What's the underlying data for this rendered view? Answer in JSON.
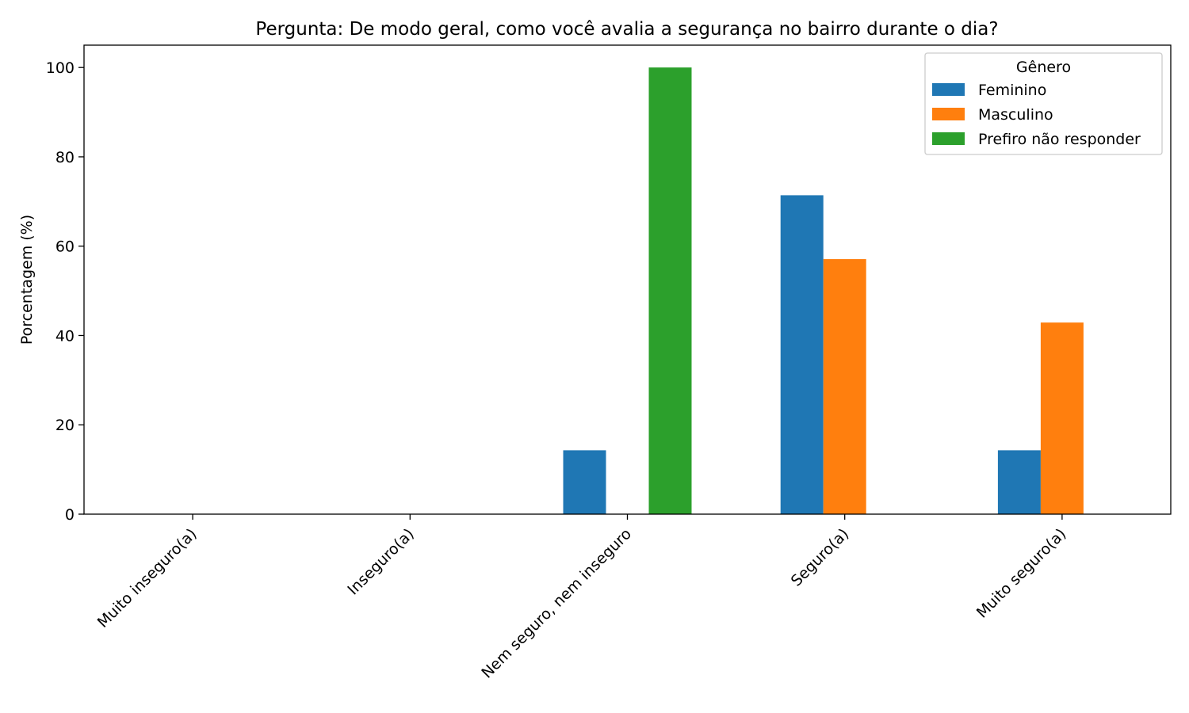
{
  "chart_data": {
    "type": "bar",
    "title": "Pergunta: De modo geral, como você avalia a segurança no bairro durante o dia?",
    "xlabel": "",
    "ylabel": "Porcentagem (%)",
    "ylim": [
      0,
      105
    ],
    "yticks": [
      0,
      20,
      40,
      60,
      80,
      100
    ],
    "grid": false,
    "categories": [
      "Muito inseguro(a)",
      "Inseguro(a)",
      "Nem seguro, nem inseguro",
      "Seguro(a)",
      "Muito seguro(a)"
    ],
    "legend": {
      "title": "Gênero",
      "placement": "top-right"
    },
    "series": [
      {
        "name": "Feminino",
        "color": "#1f77b4",
        "values": [
          0,
          0,
          14.3,
          71.4,
          14.3
        ]
      },
      {
        "name": "Masculino",
        "color": "#ff7f0e",
        "values": [
          0,
          0,
          0,
          57.1,
          42.9
        ]
      },
      {
        "name": "Prefiro não responder",
        "color": "#2ca02c",
        "values": [
          0,
          0,
          100,
          0,
          0
        ]
      }
    ]
  }
}
